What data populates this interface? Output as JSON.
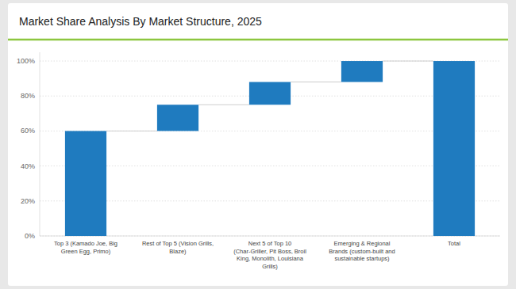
{
  "chart_data": {
    "type": "waterfall",
    "title": "Market Share Analysis By Market Structure, 2025",
    "categories": [
      "Top 3 (Kamado Joe, Big\nGreen Egg, Primo)",
      "Rest of Top 5 (Vision Grills,\nBlaze)",
      "Next 5 of Top 10\n(Char-Griller, Pit Boss, Broil\nKing, Monolith, Louisiana\nGrills)",
      "Emerging & Regional\nBrands (custom-built and\nsustainable startups)",
      "Total"
    ],
    "values": [
      60,
      15,
      13,
      12,
      100
    ],
    "color": "#1f7bbf",
    "ylim": [
      0,
      105
    ],
    "yticks": [
      {
        "value": 0,
        "label": "0%"
      },
      {
        "value": 20,
        "label": "20%"
      },
      {
        "value": 40,
        "label": "40%"
      },
      {
        "value": 60,
        "label": "60%"
      },
      {
        "value": 80,
        "label": "80%"
      },
      {
        "value": 100,
        "label": "100%"
      }
    ],
    "grid": true
  }
}
